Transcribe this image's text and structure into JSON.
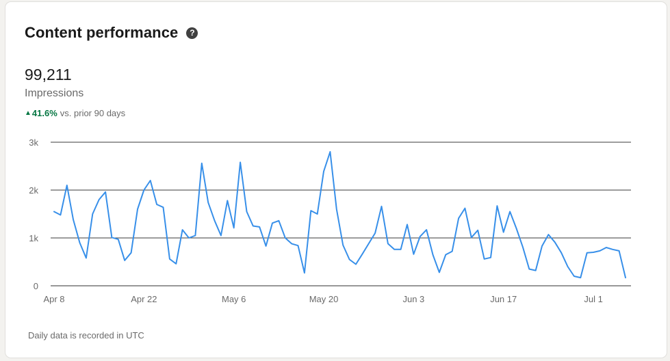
{
  "card": {
    "title": "Content performance",
    "help_icon": "question-circle-icon",
    "metric_value": "99,211",
    "metric_label": "Impressions",
    "change": {
      "direction": "up",
      "arrow": "▲",
      "percent": "41.6%",
      "suffix": "vs. prior 90 days",
      "color": "#057642"
    },
    "footnote": "Daily data is recorded in UTC"
  },
  "chart_data": {
    "type": "line",
    "ylim": [
      0,
      3000
    ],
    "yticks": [
      {
        "value": 0,
        "label": "0"
      },
      {
        "value": 1000,
        "label": "1k"
      },
      {
        "value": 2000,
        "label": "2k"
      },
      {
        "value": 3000,
        "label": "3k"
      }
    ],
    "xticks": [
      {
        "index": 0,
        "label": "Apr 8"
      },
      {
        "index": 14,
        "label": "Apr 22"
      },
      {
        "index": 28,
        "label": "May 6"
      },
      {
        "index": 42,
        "label": "May 20"
      },
      {
        "index": 56,
        "label": "Jun 3"
      },
      {
        "index": 70,
        "label": "Jun 17"
      },
      {
        "index": 84,
        "label": "Jul 1"
      }
    ],
    "grid": true,
    "line_color": "#378fe9",
    "series": [
      {
        "values": [
          1550,
          1480,
          2100,
          1380,
          900,
          580,
          1500,
          1800,
          1960,
          1010,
          970,
          530,
          690,
          1600,
          2000,
          2200,
          1700,
          1640,
          560,
          460,
          1170,
          1000,
          1050,
          2560,
          1740,
          1360,
          1050,
          1780,
          1210,
          2580,
          1550,
          1250,
          1230,
          830,
          1310,
          1360,
          1000,
          880,
          840,
          270,
          1570,
          1500,
          2390,
          2800,
          1600,
          850,
          550,
          450,
          660,
          880,
          1100,
          1660,
          880,
          760,
          760,
          1280,
          660,
          1030,
          1170,
          650,
          280,
          650,
          720,
          1410,
          1620,
          1010,
          1160,
          560,
          590,
          1670,
          1120,
          1550,
          1200,
          810,
          350,
          320,
          830,
          1070,
          910,
          690,
          400,
          200,
          170,
          690,
          700,
          730,
          800,
          760,
          730,
          170
        ]
      }
    ]
  }
}
